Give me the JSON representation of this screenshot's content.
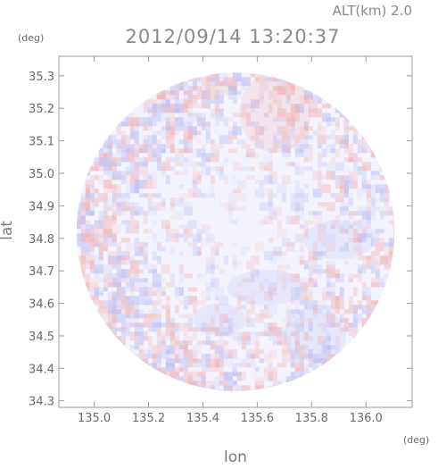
{
  "header": {
    "altitude": "ALT(km) 2.0",
    "timestamp": "2012/09/14 13:20:37"
  },
  "chart_data": {
    "type": "heatmap",
    "title": "2012/09/14 13:20:37",
    "xlabel": "lon",
    "ylabel": "lat",
    "x_unit": "(deg)",
    "y_unit": "(deg)",
    "xlim": [
      134.87,
      136.17
    ],
    "ylim": [
      34.28,
      35.36
    ],
    "x_ticks": [
      135.0,
      135.2,
      135.4,
      135.6,
      135.8,
      136.0
    ],
    "x_tick_labels": [
      "135.0",
      "135.2",
      "135.4",
      "135.6",
      "135.8",
      "136.0"
    ],
    "y_ticks": [
      34.3,
      34.4,
      34.5,
      34.6,
      34.7,
      34.8,
      34.9,
      35.0,
      35.1,
      35.2,
      35.3
    ],
    "y_tick_labels": [
      "34.3",
      "34.4",
      "34.5",
      "34.6",
      "34.7",
      "34.8",
      "34.9",
      "35.0",
      "35.1",
      "35.2",
      "35.3"
    ],
    "domain": {
      "shape": "circle",
      "center_lon": 135.52,
      "center_lat": 34.82,
      "radius_deg": 0.585
    },
    "colors": {
      "positive": "#f2b3b3",
      "negative": "#b9bdf5",
      "neutral": "#f3f3fd",
      "frame": "#9a9a9a"
    },
    "grid": false,
    "legend": "none"
  }
}
